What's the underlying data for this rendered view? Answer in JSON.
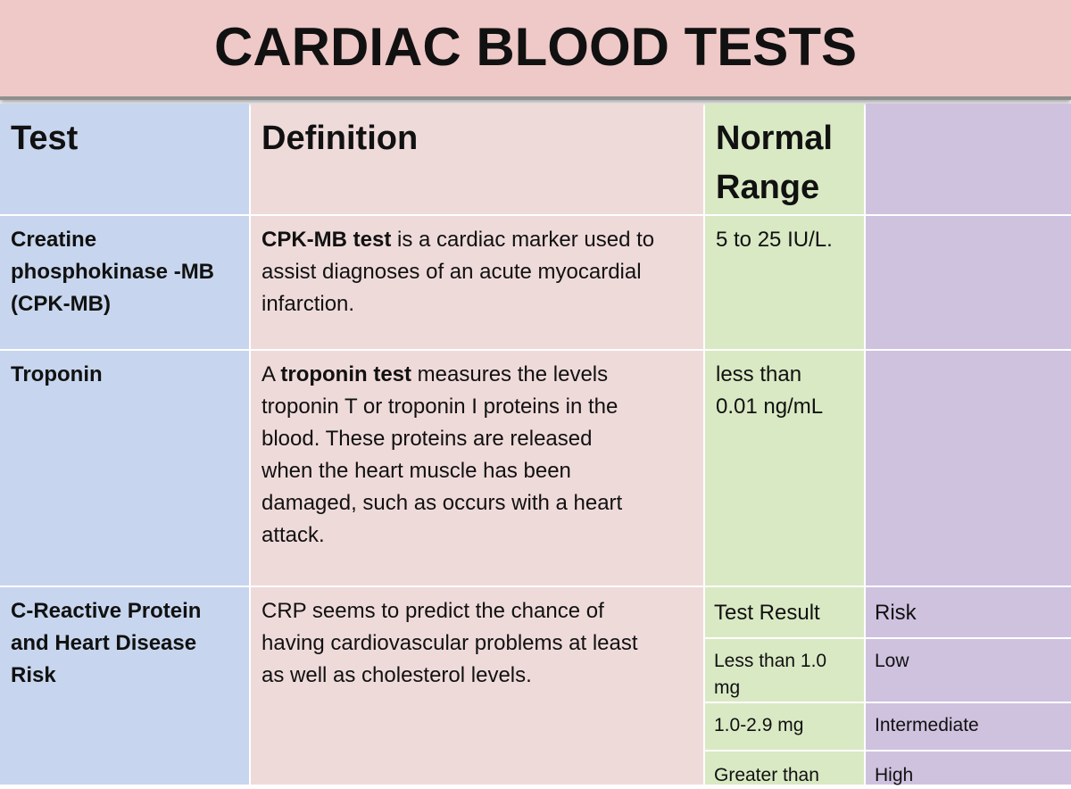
{
  "title": "CARDIAC BLOOD TESTS",
  "headers": {
    "test": "Test",
    "definition": "Definition",
    "range_line1": "Normal",
    "range_line2": "Range"
  },
  "rows": [
    {
      "test": [
        "Creatine",
        "phosphokinase -MB",
        "(CPK-MB)"
      ],
      "definition_bold": "CPK-MB test",
      "definition_rest": " is a cardiac marker used to",
      "definition_lines": [
        "assist diagnoses of an acute myocardial",
        "infarction."
      ],
      "range": [
        "5 to 25 IU/L."
      ]
    },
    {
      "test": [
        "Troponin"
      ],
      "definition_prefix": "A ",
      "definition_bold": "troponin test",
      "definition_rest": " measures the levels",
      "definition_lines": [
        "troponin T or troponin I proteins in the",
        "blood. These proteins are released",
        "when the heart muscle has been",
        "damaged, such as occurs with a heart",
        "attack."
      ],
      "range": [
        "less than",
        "0.01 ng/mL"
      ]
    },
    {
      "test": [
        "C-Reactive Protein",
        "and Heart Disease",
        "Risk"
      ],
      "definition_lines": [
        "CRP seems to predict the chance of",
        "having cardiovascular problems at least",
        "as well as cholesterol levels."
      ],
      "risk_table": {
        "header": [
          "Test Result",
          "Risk"
        ],
        "rows": [
          [
            "Less than 1.0",
            "mg",
            "Low"
          ],
          [
            "1.0-2.9 mg",
            "",
            "Intermediate"
          ],
          [
            "Greater than",
            "",
            "High"
          ]
        ]
      }
    }
  ],
  "colors": {
    "title_bg": "#efc8c8",
    "test_col": "#c7d6ee",
    "definition_col": "#efdada",
    "range_col": "#d9e9c4",
    "extra_col": "#cfc2df"
  }
}
